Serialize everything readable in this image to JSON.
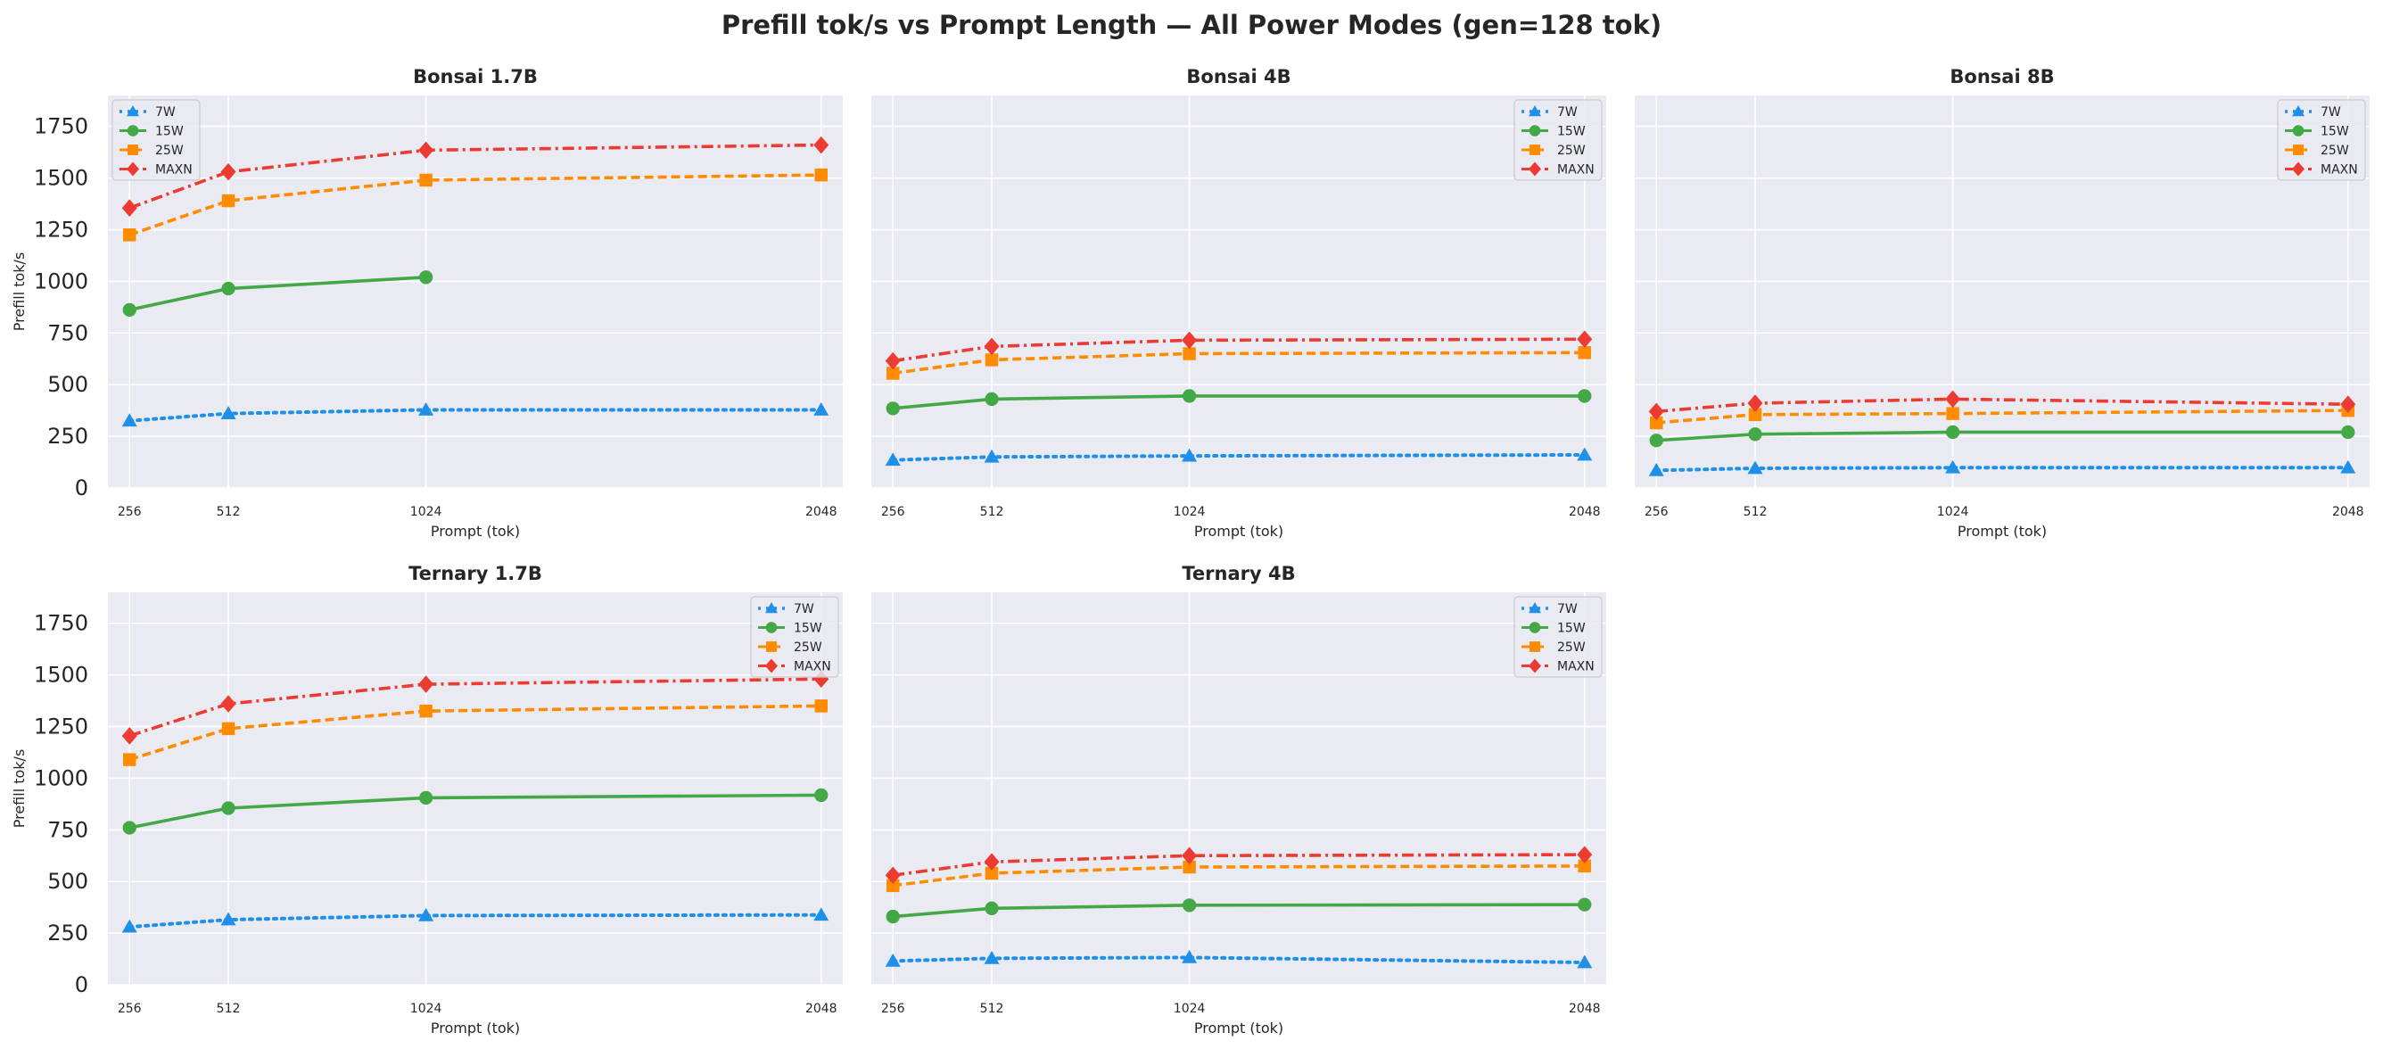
{
  "figure": {
    "title": "Prefill tok/s vs Prompt Length — All Power Modes (gen=128 tok)"
  },
  "style": {
    "axes_bg": "#eaeaf2",
    "grid": "#ffffff",
    "colors": {
      "7W": "#1e90e8",
      "15W": "#43a846",
      "25W": "#ff8c00",
      "MAXN": "#eb3b32"
    },
    "markers": {
      "7W": "triangle",
      "15W": "circle",
      "25W": "square",
      "MAXN": "diamond"
    },
    "linestyles": {
      "7W": "dotted",
      "15W": "solid",
      "25W": "dashed",
      "MAXN": "dashdot"
    }
  },
  "chart_data": [
    {
      "type": "line",
      "title": "Bonsai 1.7B",
      "xlabel": "Prompt (tok)",
      "ylabel": "Prefill tok/s",
      "x": [
        256,
        512,
        1024,
        2048
      ],
      "x_ticklabels": [
        "256",
        "512",
        "1024",
        "2048"
      ],
      "ylim": [
        0,
        1900
      ],
      "y_ticks": [
        0,
        250,
        500,
        750,
        1000,
        1250,
        1500,
        1750
      ],
      "legend_loc": "upper-left",
      "series": [
        {
          "name": "7W",
          "values": [
            325,
            360,
            378,
            378
          ]
        },
        {
          "name": "15W",
          "values": [
            862,
            965,
            1020,
            null
          ]
        },
        {
          "name": "25W",
          "values": [
            1225,
            1390,
            1490,
            1515
          ]
        },
        {
          "name": "MAXN",
          "values": [
            1355,
            1530,
            1635,
            1660
          ]
        }
      ]
    },
    {
      "type": "line",
      "title": "Bonsai 4B",
      "xlabel": "Prompt (tok)",
      "ylabel": "",
      "x": [
        256,
        512,
        1024,
        2048
      ],
      "x_ticklabels": [
        "256",
        "512",
        "1024",
        "2048"
      ],
      "ylim": [
        0,
        1900
      ],
      "y_ticks": [
        0,
        250,
        500,
        750,
        1000,
        1250,
        1500,
        1750
      ],
      "legend_loc": "upper-right",
      "series": [
        {
          "name": "7W",
          "values": [
            135,
            150,
            155,
            160
          ]
        },
        {
          "name": "15W",
          "values": [
            385,
            430,
            445,
            445
          ]
        },
        {
          "name": "25W",
          "values": [
            555,
            620,
            650,
            655
          ]
        },
        {
          "name": "MAXN",
          "values": [
            615,
            685,
            715,
            720
          ]
        }
      ]
    },
    {
      "type": "line",
      "title": "Bonsai 8B",
      "xlabel": "Prompt (tok)",
      "ylabel": "",
      "x": [
        256,
        512,
        1024,
        2048
      ],
      "x_ticklabels": [
        "256",
        "512",
        "1024",
        "2048"
      ],
      "ylim": [
        0,
        1900
      ],
      "y_ticks": [
        0,
        250,
        500,
        750,
        1000,
        1250,
        1500,
        1750
      ],
      "legend_loc": "upper-right",
      "series": [
        {
          "name": "7W",
          "values": [
            85,
            95,
            98,
            98
          ]
        },
        {
          "name": "15W",
          "values": [
            230,
            260,
            270,
            270
          ]
        },
        {
          "name": "25W",
          "values": [
            315,
            355,
            360,
            375
          ]
        },
        {
          "name": "MAXN",
          "values": [
            370,
            410,
            430,
            405
          ]
        }
      ]
    },
    {
      "type": "line",
      "title": "Ternary 1.7B",
      "xlabel": "Prompt (tok)",
      "ylabel": "Prefill tok/s",
      "x": [
        256,
        512,
        1024,
        2048
      ],
      "x_ticklabels": [
        "256",
        "512",
        "1024",
        "2048"
      ],
      "ylim": [
        0,
        1900
      ],
      "y_ticks": [
        0,
        250,
        500,
        750,
        1000,
        1250,
        1500,
        1750
      ],
      "legend_loc": "upper-right",
      "series": [
        {
          "name": "7W",
          "values": [
            280,
            315,
            335,
            338
          ]
        },
        {
          "name": "15W",
          "values": [
            760,
            855,
            905,
            918
          ]
        },
        {
          "name": "25W",
          "values": [
            1090,
            1240,
            1325,
            1350
          ]
        },
        {
          "name": "MAXN",
          "values": [
            1205,
            1360,
            1455,
            1480
          ]
        }
      ]
    },
    {
      "type": "line",
      "title": "Ternary 4B",
      "xlabel": "Prompt (tok)",
      "ylabel": "",
      "x": [
        256,
        512,
        1024,
        2048
      ],
      "x_ticklabels": [
        "256",
        "512",
        "1024",
        "2048"
      ],
      "ylim": [
        0,
        1900
      ],
      "y_ticks": [
        0,
        250,
        500,
        750,
        1000,
        1250,
        1500,
        1750
      ],
      "legend_loc": "upper-right",
      "series": [
        {
          "name": "7W",
          "values": [
            115,
            128,
            132,
            108
          ]
        },
        {
          "name": "15W",
          "values": [
            330,
            370,
            385,
            388
          ]
        },
        {
          "name": "25W",
          "values": [
            480,
            540,
            570,
            575
          ]
        },
        {
          "name": "MAXN",
          "values": [
            530,
            595,
            625,
            630
          ]
        }
      ]
    }
  ]
}
